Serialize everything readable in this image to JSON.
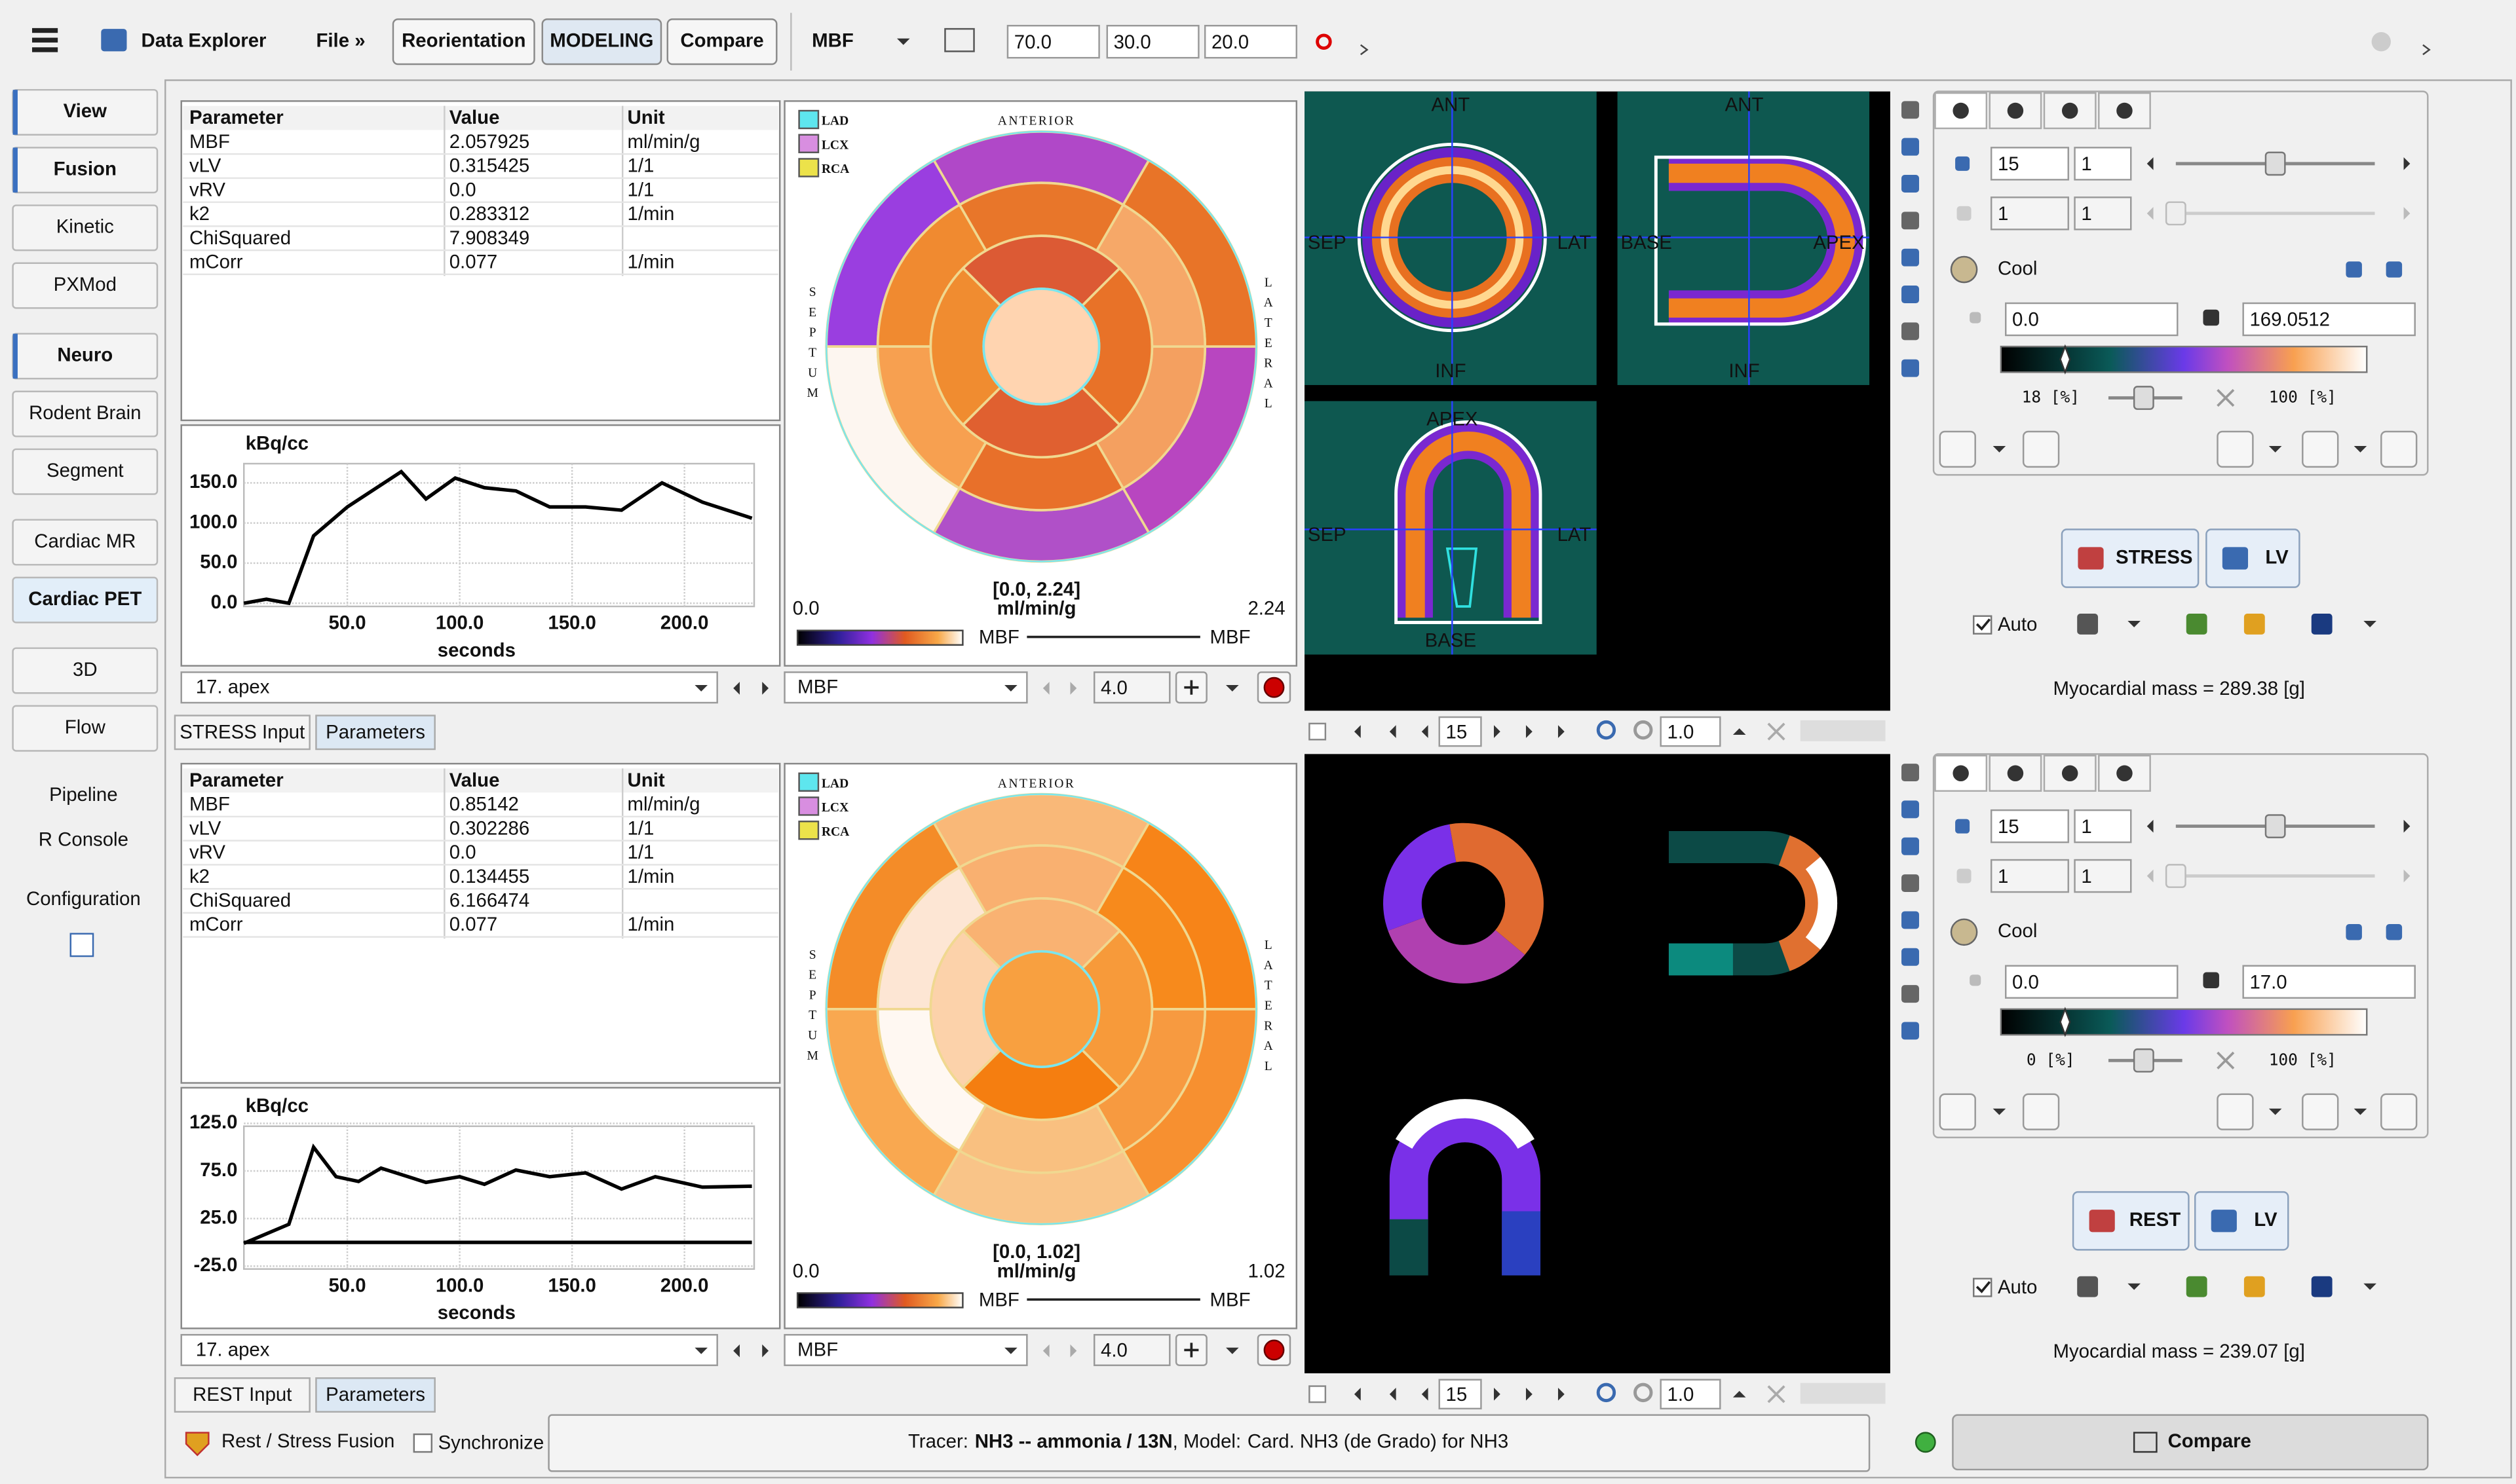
{
  "toolbar": {
    "app_title": "Data Explorer",
    "file_menu": "File »",
    "mode_buttons": [
      "Reorientation",
      "MODELING",
      "Compare"
    ],
    "parameter": "MBF",
    "fusion_values": [
      "70.0",
      "30.0",
      "20.0"
    ]
  },
  "sidebar": [
    "View",
    "Fusion",
    "Kinetic",
    "PXMod",
    "Neuro",
    "Rodent Brain",
    "Segment",
    "Cardiac MR",
    "Cardiac PET",
    "3D",
    "Flow",
    "Pipeline",
    "R Console",
    "Configuration"
  ],
  "panels": [
    {
      "table": {
        "columns": [
          "Parameter",
          "Value",
          "Unit"
        ],
        "rows": [
          [
            "MBF",
            "2.057925",
            "ml/min/g"
          ],
          [
            "vLV",
            "0.315425",
            "1/1"
          ],
          [
            "vRV",
            "0.0",
            "1/1"
          ],
          [
            "k2",
            "0.283312",
            "1/min"
          ],
          [
            "ChiSquared",
            "7.908349"
          ],
          [
            "mCorr",
            "0.077",
            "1/min"
          ]
        ]
      },
      "curve": {
        "type": "line",
        "y_label": "kBq/cc",
        "x_label": "seconds",
        "xlim": [
          4,
          231
        ],
        "ylim": [
          -4,
          174
        ],
        "xticks": [
          {
            "value": 50,
            "label": "50.0"
          },
          {
            "value": 100,
            "label": "100.0"
          },
          {
            "value": 150,
            "label": "150.0"
          },
          {
            "value": 200,
            "label": "200.0"
          }
        ],
        "yticks": [
          {
            "value": 0,
            "label": "0.0"
          },
          {
            "value": 50,
            "label": "50.0"
          },
          {
            "value": 100,
            "label": "100.0"
          },
          {
            "value": 150,
            "label": "150.0"
          }
        ],
        "series": [
          {
            "color": "#000000",
            "x": [
              4,
              14,
              24,
              35,
              50,
              74,
              85,
              98,
              111,
              125,
              140,
              156,
              172,
              190,
              208,
              230
            ],
            "values": [
              0,
              5,
              0,
              84,
              120,
              164,
              130,
              156,
              144,
              140,
              120,
              120,
              116,
              150,
              126,
              106
            ]
          }
        ]
      },
      "segment": "17. apex",
      "polar": {
        "top_label": "ANTERIOR",
        "left_label": "SEPTUM",
        "right_label": "LATERAL",
        "territories": [
          {
            "name": "LAD",
            "color": "#5ee6ee"
          },
          {
            "name": "LCX",
            "color": "#d88ee0"
          },
          {
            "name": "RCA",
            "color": "#ece24a"
          }
        ],
        "segment_colors": [
          "#b048c8",
          "#9a3ee0",
          "#fdf6f0",
          "#b050c8",
          "#b846c0",
          "#e87428",
          "#e8762a",
          "#f08a30",
          "#f7a050",
          "#e8702a",
          "#f4a060",
          "#f6a868",
          "#dc5a34",
          "#f08c30",
          "#e06030",
          "#e87228",
          "#ffd4b0"
        ],
        "range": "[0.0, 2.24]",
        "unit": "ml/min/g",
        "min": "0.0",
        "max": "2.24",
        "bar_label": "MBF",
        "line_label": "MBF"
      },
      "map_parameter": "MBF",
      "frame_field": "4.0",
      "tabs": [
        "STRESS Input",
        "Parameters"
      ],
      "image_labels": [
        "ANT",
        "SEP",
        "LAT",
        "INF",
        "ANT",
        "BASE",
        "APEX",
        "INF",
        "APEX",
        "SEP",
        "LAT",
        "BASE"
      ],
      "slice": "15",
      "zoom": "1.0",
      "display": {
        "fields": [
          "15",
          "1",
          "1",
          "1"
        ],
        "colormap": "Cool",
        "min": "0.0",
        "max": "169.0512",
        "lower": "18 [%]",
        "upper": "100 [%]"
      },
      "buttons": [
        "STRESS",
        "LV"
      ],
      "auto": "Auto",
      "mass": "Myocardial mass = 289.38 [g]"
    },
    {
      "table": {
        "columns": [
          "Parameter",
          "Value",
          "Unit"
        ],
        "rows": [
          [
            "MBF",
            "0.85142",
            "ml/min/g"
          ],
          [
            "vLV",
            "0.302286",
            "1/1"
          ],
          [
            "vRV",
            "0.0",
            "1/1"
          ],
          [
            "k2",
            "0.134455",
            "1/min"
          ],
          [
            "ChiSquared",
            "6.166474"
          ],
          [
            "mCorr",
            "0.077",
            "1/min"
          ]
        ]
      },
      "curve": {
        "type": "line",
        "y_label": "kBq/cc",
        "x_label": "seconds",
        "xlim": [
          4,
          231
        ],
        "ylim": [
          -28,
          122
        ],
        "xticks": [
          {
            "value": 50,
            "label": "50.0"
          },
          {
            "value": 100,
            "label": "100.0"
          },
          {
            "value": 150,
            "label": "150.0"
          },
          {
            "value": 200,
            "label": "200.0"
          }
        ],
        "yticks": [
          {
            "value": -25,
            "label": "-25.0"
          },
          {
            "value": 25,
            "label": "25.0"
          },
          {
            "value": 75,
            "label": "75.0"
          },
          {
            "value": 125,
            "label": "125.0"
          }
        ],
        "series": [
          {
            "color": "#000000",
            "x": [
              4,
              24,
              35,
              45,
              55,
              65,
              85,
              100,
              111,
              125,
              140,
              156,
              172,
              187,
              208,
              230
            ],
            "values": [
              -1,
              19,
              100,
              69,
              64,
              78,
              63,
              69,
              61,
              76,
              69,
              73,
              56,
              69,
              58,
              59
            ]
          },
          {
            "color": "#000000",
            "x": [
              4,
              230
            ],
            "values": [
              0,
              0
            ]
          }
        ]
      },
      "segment": "17. apex",
      "polar": {
        "top_label": "ANTERIOR",
        "left_label": "SEPTUM",
        "right_label": "LATERAL",
        "territories": [
          {
            "name": "LAD",
            "color": "#5ee6ee"
          },
          {
            "name": "LCX",
            "color": "#d88ee0"
          },
          {
            "name": "RCA",
            "color": "#ece24a"
          }
        ],
        "segment_colors": [
          "#f9b878",
          "#f48c28",
          "#f9a850",
          "#f9c488",
          "#f79030",
          "#f78418",
          "#f9b070",
          "#fde6d4",
          "#fff8f2",
          "#f9c080",
          "#f79a40",
          "#f78a1c",
          "#f9b272",
          "#fcd2aa",
          "#f57e10",
          "#f79a3a",
          "#f8a040"
        ],
        "range": "[0.0, 1.02]",
        "unit": "ml/min/g",
        "min": "0.0",
        "max": "1.02",
        "bar_label": "MBF",
        "line_label": "MBF"
      },
      "map_parameter": "MBF",
      "frame_field": "4.0",
      "tabs": [
        "REST Input",
        "Parameters"
      ],
      "slice": "15",
      "zoom": "1.0",
      "display": {
        "fields": [
          "15",
          "1",
          "1",
          "1"
        ],
        "colormap": "Cool",
        "min": "0.0",
        "max": "17.0",
        "lower": "0 [%]",
        "upper": "100 [%]"
      },
      "buttons": [
        "REST",
        "LV"
      ],
      "auto": "Auto",
      "mass": "Myocardial mass = 239.07 [g]"
    }
  ],
  "footer": {
    "fusion": "Rest / Stress Fusion",
    "synchronize": "Synchronize",
    "tracer_label": "Tracer:",
    "tracer": "NH3 -- ammonia / 13N",
    "model_label": ", Model:",
    "model": "Card. NH3 (de Grado) for NH3",
    "compare": "Compare"
  }
}
